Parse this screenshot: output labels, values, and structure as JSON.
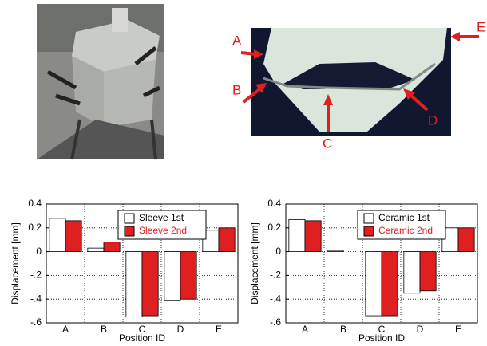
{
  "photo_labels": [
    "A",
    "B",
    "C",
    "D",
    "E"
  ],
  "chart_data": [
    {
      "type": "bar",
      "x_label": "Position ID",
      "y_label": "Displacement [mm]",
      "categories": [
        "A",
        "B",
        "C",
        "D",
        "E"
      ],
      "series": [
        {
          "name": "Sleeve 1st",
          "color": "#ffffff",
          "values": [
            0.28,
            0.03,
            -0.55,
            -0.41,
            0.18
          ]
        },
        {
          "name": "Sleeve 2nd",
          "color": "#e02020",
          "values": [
            0.26,
            0.08,
            -0.54,
            -0.4,
            0.2
          ]
        }
      ],
      "ylim": [
        -0.6,
        0.4
      ],
      "yticks": [
        {
          "value": -0.6,
          "label": "-.6"
        },
        {
          "value": -0.4,
          "label": "-.4"
        },
        {
          "value": -0.2,
          "label": "-.2"
        },
        0,
        0.2,
        0.4
      ],
      "grid": true,
      "legend": "upper right"
    },
    {
      "type": "bar",
      "x_label": "Position ID",
      "y_label": "Displacement [mm]",
      "categories": [
        "A",
        "B",
        "C",
        "D",
        "E"
      ],
      "series": [
        {
          "name": "Ceramic 1st",
          "color": "#ffffff",
          "values": [
            0.27,
            0.01,
            -0.54,
            -0.35,
            0.2
          ]
        },
        {
          "name": "Ceramic 2nd",
          "color": "#e02020",
          "values": [
            0.26,
            0,
            -0.54,
            -0.33,
            0.2
          ]
        }
      ],
      "ylim": [
        -0.6,
        0.4
      ],
      "yticks": [
        {
          "value": -0.6,
          "label": "-.6"
        },
        {
          "value": -0.4,
          "label": "-.4"
        },
        {
          "value": -0.2,
          "label": "-.2"
        },
        0,
        0.2,
        0.4
      ],
      "grid": true,
      "legend": "upper right"
    }
  ]
}
